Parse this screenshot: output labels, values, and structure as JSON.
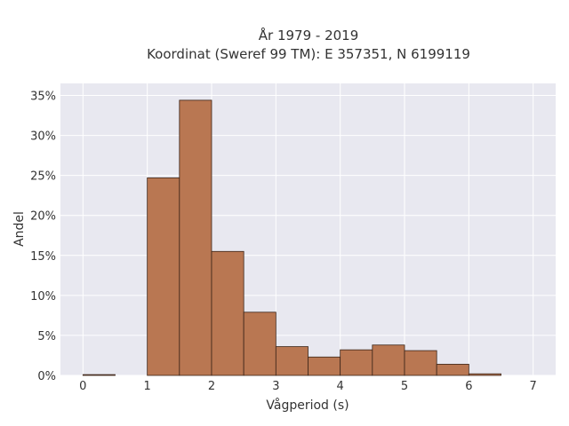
{
  "chart_data": {
    "type": "bar",
    "title": "År 1979 - 2019",
    "subtitle": "Koordinat (Sweref 99 TM): E 357351, N 6199119",
    "xlabel": "Vågperiod (s)",
    "ylabel": "Andel",
    "xlim": [
      -0.35,
      7.35
    ],
    "ylim": [
      0,
      36.5
    ],
    "x_ticks": [
      0,
      1,
      2,
      3,
      4,
      5,
      6,
      7
    ],
    "y_ticks": [
      0,
      5,
      10,
      15,
      20,
      25,
      30,
      35
    ],
    "y_tick_suffix": "%",
    "grid": true,
    "bin_width": 0.5,
    "bins": [
      {
        "start": 0.0,
        "value": 0.1
      },
      {
        "start": 0.5,
        "value": 0.0
      },
      {
        "start": 1.0,
        "value": 24.7
      },
      {
        "start": 1.5,
        "value": 34.4
      },
      {
        "start": 2.0,
        "value": 15.5
      },
      {
        "start": 2.5,
        "value": 7.9
      },
      {
        "start": 3.0,
        "value": 3.6
      },
      {
        "start": 3.5,
        "value": 2.3
      },
      {
        "start": 4.0,
        "value": 3.2
      },
      {
        "start": 4.5,
        "value": 3.8
      },
      {
        "start": 5.0,
        "value": 3.1
      },
      {
        "start": 5.5,
        "value": 1.4
      },
      {
        "start": 6.0,
        "value": 0.2
      }
    ],
    "colors": {
      "bar_fill": "#b97752",
      "bar_stroke": "#3b2418",
      "plot_bg": "#e8e8f0",
      "grid": "#ffffff"
    }
  }
}
